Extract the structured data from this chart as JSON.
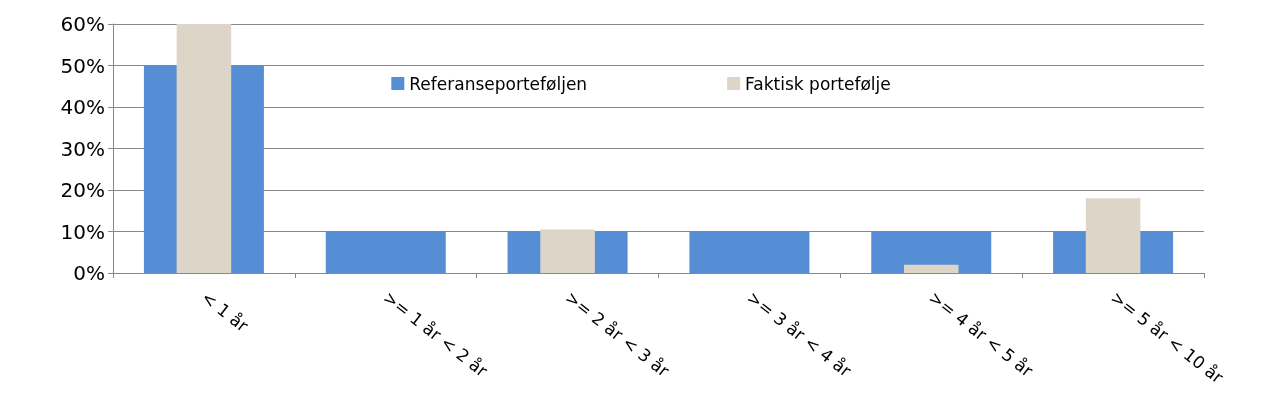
{
  "chart_data": {
    "type": "bar",
    "categories": [
      "< 1 år",
      ">= 1 år < 2 år",
      ">= 2 år < 3 år",
      ">= 3 år < 4 år",
      ">= 4 år < 5 år",
      ">= 5 år < 10 år"
    ],
    "series": [
      {
        "name": "Referanseporteføljen",
        "color": "#558ed5",
        "values": [
          50,
          10,
          10,
          10,
          10,
          10
        ]
      },
      {
        "name": "Faktisk portefølje",
        "color": "#ddd5c8",
        "values": [
          60,
          0,
          10.5,
          0,
          2,
          18
        ]
      }
    ],
    "ylim": [
      0,
      60
    ],
    "yticks": [
      {
        "value": 0,
        "label": "0%"
      },
      {
        "value": 10,
        "label": "10%"
      },
      {
        "value": 20,
        "label": "20%"
      },
      {
        "value": 30,
        "label": "30%"
      },
      {
        "value": 40,
        "label": "40%"
      },
      {
        "value": 50,
        "label": "50%"
      },
      {
        "value": 60,
        "label": "60%"
      }
    ],
    "grid": "y",
    "legend": "top"
  }
}
